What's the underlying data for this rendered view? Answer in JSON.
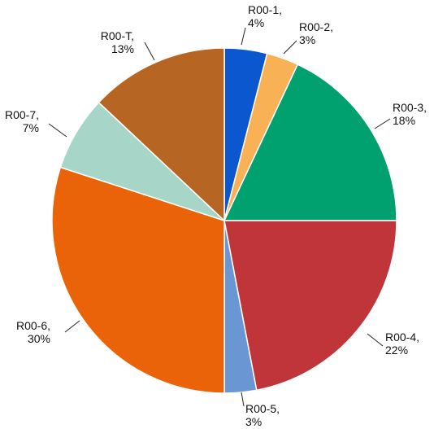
{
  "chart_data": {
    "type": "pie",
    "start_angle_deg": 0,
    "direction": "clockwise",
    "slices": [
      {
        "label": "R00-1",
        "value": 4,
        "value_label": "4%",
        "color": "#0b57d0"
      },
      {
        "label": "R00-2",
        "value": 3,
        "value_label": "3%",
        "color": "#f8b155"
      },
      {
        "label": "R00-3",
        "value": 18,
        "value_label": "18%",
        "color": "#00a06f"
      },
      {
        "label": "R00-4",
        "value": 22,
        "value_label": "22%",
        "color": "#c0353a"
      },
      {
        "label": "R00-5",
        "value": 3,
        "value_label": "3%",
        "color": "#6a97d3"
      },
      {
        "label": "R00-6",
        "value": 30,
        "value_label": "30%",
        "color": "#ea6308"
      },
      {
        "label": "R00-7",
        "value": 7,
        "value_label": "7%",
        "color": "#a7d6c8"
      },
      {
        "label": "R00-T",
        "value": 13,
        "value_label": "13%",
        "color": "#b66522"
      }
    ]
  }
}
